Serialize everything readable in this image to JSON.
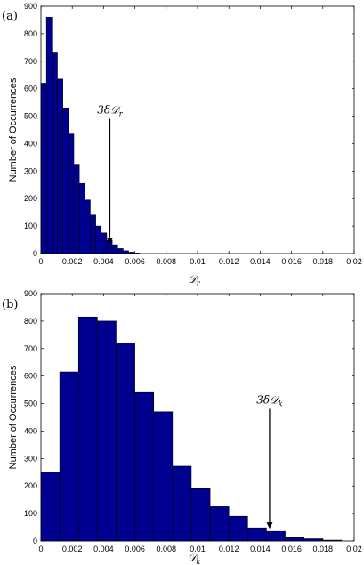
{
  "chart_data": [
    {
      "type": "bar",
      "panel_label": "(a)",
      "xlabel": "𝒟",
      "xlabel_sub": "r",
      "ylabel": "Number of Occurrences",
      "xlim": [
        0,
        0.02
      ],
      "ylim": [
        0,
        900
      ],
      "xticks": [
        "0",
        "0.002",
        "0.004",
        "0.006",
        "0.008",
        "0.01",
        "0.012",
        "0.014",
        "0.016",
        "0.018",
        "0.02"
      ],
      "yticks": [
        "0",
        "100",
        "200",
        "300",
        "400",
        "500",
        "600",
        "700",
        "800",
        "900"
      ],
      "bin_width": 0.00035,
      "bin_start": 0,
      "values": [
        620,
        860,
        730,
        635,
        530,
        435,
        325,
        255,
        195,
        140,
        100,
        75,
        48,
        32,
        18,
        10,
        5,
        2
      ],
      "bar_color": "#000090",
      "annotation": {
        "text_main": "3δ𝒟",
        "text_sub": "r",
        "x": 0.0044,
        "text_y": 510,
        "arrow_tip_y": 35
      }
    },
    {
      "type": "bar",
      "panel_label": "(b)",
      "xlabel": "𝒟",
      "xlabel_sub": "k",
      "ylabel": "Number of Occurrences",
      "xlim": [
        0,
        0.02
      ],
      "ylim": [
        0,
        900
      ],
      "xticks": [
        "0",
        "0.002",
        "0.004",
        "0.006",
        "0.008",
        "0.01",
        "0.012",
        "0.014",
        "0.016",
        "0.018",
        "0.02"
      ],
      "yticks": [
        "0",
        "100",
        "200",
        "300",
        "400",
        "500",
        "600",
        "700",
        "800",
        "900"
      ],
      "bin_width": 0.0012,
      "bin_start": 0,
      "values": [
        250,
        615,
        815,
        800,
        720,
        540,
        470,
        272,
        190,
        125,
        90,
        48,
        35,
        12,
        8,
        3
      ],
      "bar_color": "#000090",
      "annotation": {
        "text_main": "3δ𝒟",
        "text_sub": "k",
        "x": 0.0146,
        "text_y": 500,
        "arrow_tip_y": 45
      }
    }
  ]
}
